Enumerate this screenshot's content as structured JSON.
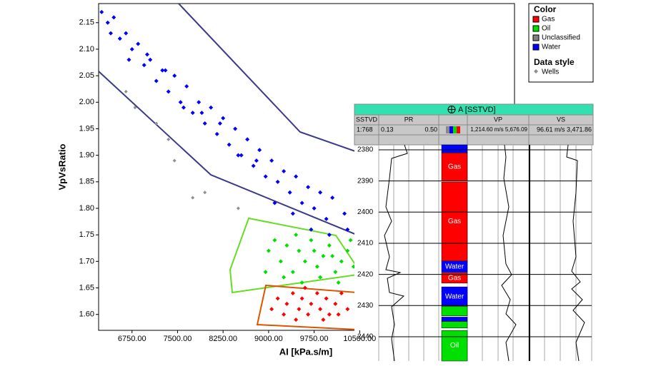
{
  "crossplot": {
    "type": "scatter",
    "xlabel": "AI [kPa.s/m]",
    "ylabel": "VpVsRatio",
    "xlim": [
      6200,
      13050
    ],
    "ylim": [
      1.57,
      2.186
    ],
    "xticks": [
      {
        "value": 6750,
        "label": "6750.00"
      },
      {
        "value": 7500,
        "label": "7500.00"
      },
      {
        "value": 8250,
        "label": "8250.00"
      },
      {
        "value": 9000,
        "label": "9000.00"
      },
      {
        "value": 9750,
        "label": "9750.00"
      },
      {
        "value": 10500,
        "label": "10500.00"
      }
    ],
    "yticks": [
      2.15,
      {
        "value": 2.1,
        "label": "2.10"
      },
      2.05,
      {
        "value": 2.0,
        "label": "2.00"
      },
      1.95,
      {
        "value": 1.9,
        "label": "1.90"
      },
      1.85,
      {
        "value": 1.8,
        "label": "1.80"
      },
      1.75,
      {
        "value": 1.7,
        "label": "1.70"
      },
      1.65,
      {
        "value": 1.6,
        "label": "1.60"
      }
    ],
    "series": [
      {
        "name": "Gas",
        "color": "#ff0000",
        "x": [
          9050,
          9150,
          9250,
          9300,
          9400,
          9500,
          9550,
          9650,
          9700,
          9800,
          9850,
          9950,
          10000,
          10100,
          10200,
          10300,
          9450,
          9600,
          9900,
          10150
        ],
        "y": [
          1.61,
          1.63,
          1.6,
          1.62,
          1.64,
          1.61,
          1.63,
          1.6,
          1.62,
          1.64,
          1.61,
          1.63,
          1.6,
          1.62,
          1.64,
          1.61,
          1.59,
          1.65,
          1.59,
          1.6
        ]
      },
      {
        "name": "Oil",
        "color": "#00e000",
        "x": [
          9000,
          9100,
          9200,
          9300,
          9400,
          9500,
          9600,
          9700,
          9800,
          9900,
          10000,
          10100,
          10200,
          10300,
          10400,
          9250,
          9550,
          9850,
          10150,
          9450,
          9750,
          10050,
          10350,
          8950
        ],
        "y": [
          1.72,
          1.74,
          1.7,
          1.73,
          1.68,
          1.72,
          1.7,
          1.74,
          1.69,
          1.71,
          1.73,
          1.68,
          1.7,
          1.72,
          1.69,
          1.67,
          1.66,
          1.67,
          1.66,
          1.75,
          1.72,
          1.71,
          1.74,
          1.68
        ]
      },
      {
        "name": "Unclassified",
        "color": "#808080",
        "x": [],
        "y": []
      },
      {
        "name": "Water",
        "color": "#0000ff",
        "x": [
          6250,
          6350,
          6450,
          6550,
          6650,
          6750,
          6850,
          6950,
          7050,
          7150,
          7250,
          7350,
          7450,
          7550,
          7650,
          7750,
          7850,
          7950,
          8050,
          8150,
          8250,
          8350,
          8450,
          8550,
          8650,
          8750,
          8850,
          8950,
          9050,
          9150,
          9250,
          9350,
          9450,
          9550,
          9650,
          9750,
          9850,
          9950,
          10050,
          10250,
          10450,
          6400,
          6700,
          7000,
          7300,
          7600,
          7900,
          8200,
          8500,
          8800,
          9100,
          9400,
          9700,
          10000,
          10300
        ],
        "y": [
          2.17,
          2.15,
          2.16,
          2.12,
          2.13,
          2.1,
          2.11,
          2.07,
          2.08,
          2.04,
          2.06,
          2.02,
          2.05,
          2.0,
          2.03,
          1.98,
          2.0,
          1.96,
          1.99,
          1.94,
          1.97,
          1.92,
          1.95,
          1.9,
          1.93,
          1.88,
          1.91,
          1.86,
          1.89,
          1.85,
          1.87,
          1.83,
          1.86,
          1.81,
          1.84,
          1.8,
          1.83,
          1.78,
          1.82,
          1.79,
          1.8,
          2.13,
          2.08,
          2.09,
          2.06,
          1.99,
          1.98,
          1.96,
          1.9,
          1.89,
          1.81,
          1.79,
          1.76,
          1.75,
          1.76
        ]
      },
      {
        "name": "Wells",
        "color": "#909090",
        "x": [
          6650,
          6800,
          7150,
          7350,
          7450,
          7750,
          7950,
          8500
        ],
        "y": [
          2.02,
          1.99,
          1.96,
          1.93,
          1.89,
          1.82,
          1.83,
          1.8
        ]
      }
    ]
  },
  "legend": {
    "color_title": "Color",
    "items": [
      "Gas",
      "Oil",
      "Unclassified",
      "Water"
    ],
    "style_title": "Data style",
    "style_item": "Wells"
  },
  "log_panel": {
    "title": "A [SSTVD]",
    "headers": [
      "SSTVD",
      "PR",
      "VP",
      "VS"
    ],
    "scale": "1:768",
    "pr_min": "0.13",
    "pr_max": "0.50",
    "vp_range": "1,214.60 m/s 5,676.09",
    "vs_range": "96.61 m/s 3,471.86",
    "depthlim": [
      2378.4,
      2447.8
    ],
    "depth_ticks": [
      2380,
      2390,
      2400,
      2410,
      2420,
      2430,
      2440
    ],
    "zones": [
      {
        "top": 2378.4,
        "base": 2381,
        "color": "#0000ff"
      },
      {
        "top": 2381,
        "base": 2390,
        "color": "#ff0000",
        "label": "Gas"
      },
      {
        "top": 2390.3,
        "base": 2415.7,
        "color": "#ff0000",
        "label": "Gas"
      },
      {
        "top": 2415.7,
        "base": 2419.3,
        "color": "#0000ff",
        "label": "Water"
      },
      {
        "top": 2419.5,
        "base": 2422.8,
        "color": "#ff0000",
        "label": "Gas"
      },
      {
        "top": 2424,
        "base": 2430.2,
        "color": "#0000ff",
        "label": "Water"
      },
      {
        "top": 2430.2,
        "base": 2433.3,
        "color": "#00e000"
      },
      {
        "top": 2433.7,
        "base": 2435.1,
        "color": "#0000ff"
      },
      {
        "top": 2435.1,
        "base": 2437.2,
        "color": "#00e000"
      },
      {
        "top": 2438,
        "base": 2447.8,
        "color": "#00e000",
        "label": "Oil"
      }
    ]
  }
}
